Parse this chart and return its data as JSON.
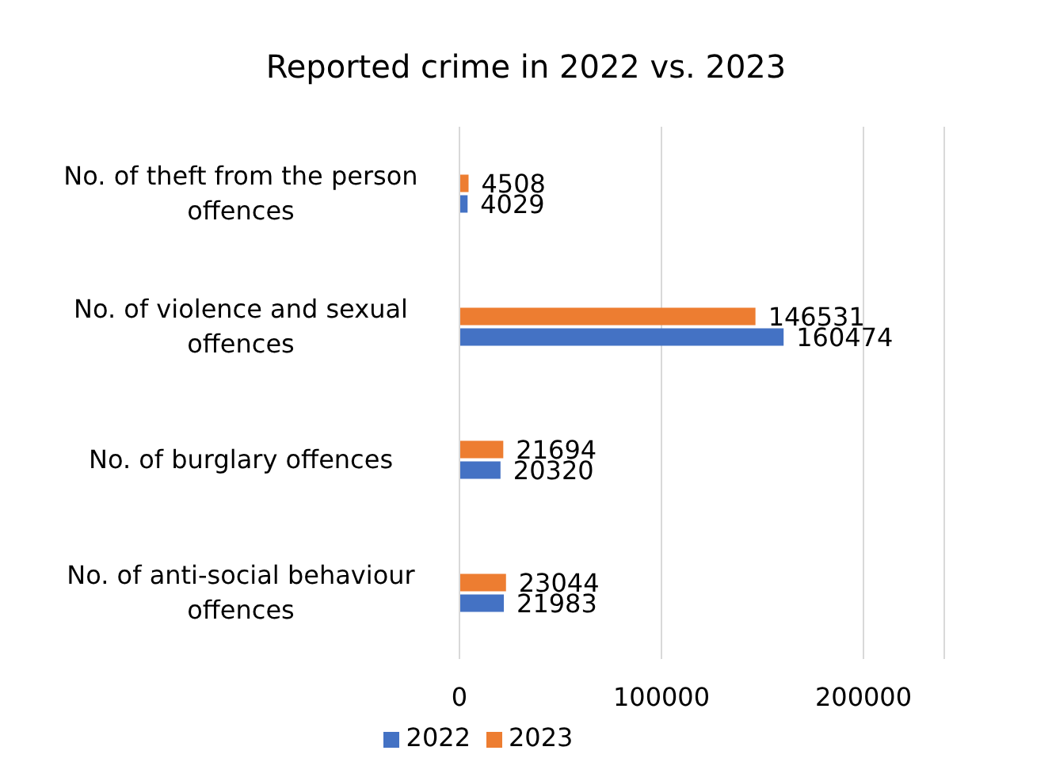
{
  "chart_data": {
    "type": "bar",
    "orientation": "horizontal",
    "title": "Reported crime in 2022 vs. 2023",
    "categories": [
      "No. of theft from the person offences",
      "No. of violence and sexual offences",
      "No. of burglary offences",
      "No. of anti-social behaviour offences"
    ],
    "series": [
      {
        "name": "2023",
        "color": "#ed7d31",
        "values": [
          4508,
          146531,
          21694,
          23044
        ]
      },
      {
        "name": "2022",
        "color": "#4472c4",
        "values": [
          4029,
          160474,
          20320,
          21983
        ]
      }
    ],
    "xlim": [
      0,
      240000
    ],
    "xticks": [
      0,
      100000,
      200000
    ],
    "grid": "x",
    "legend": "bottom",
    "data_labels": true
  }
}
